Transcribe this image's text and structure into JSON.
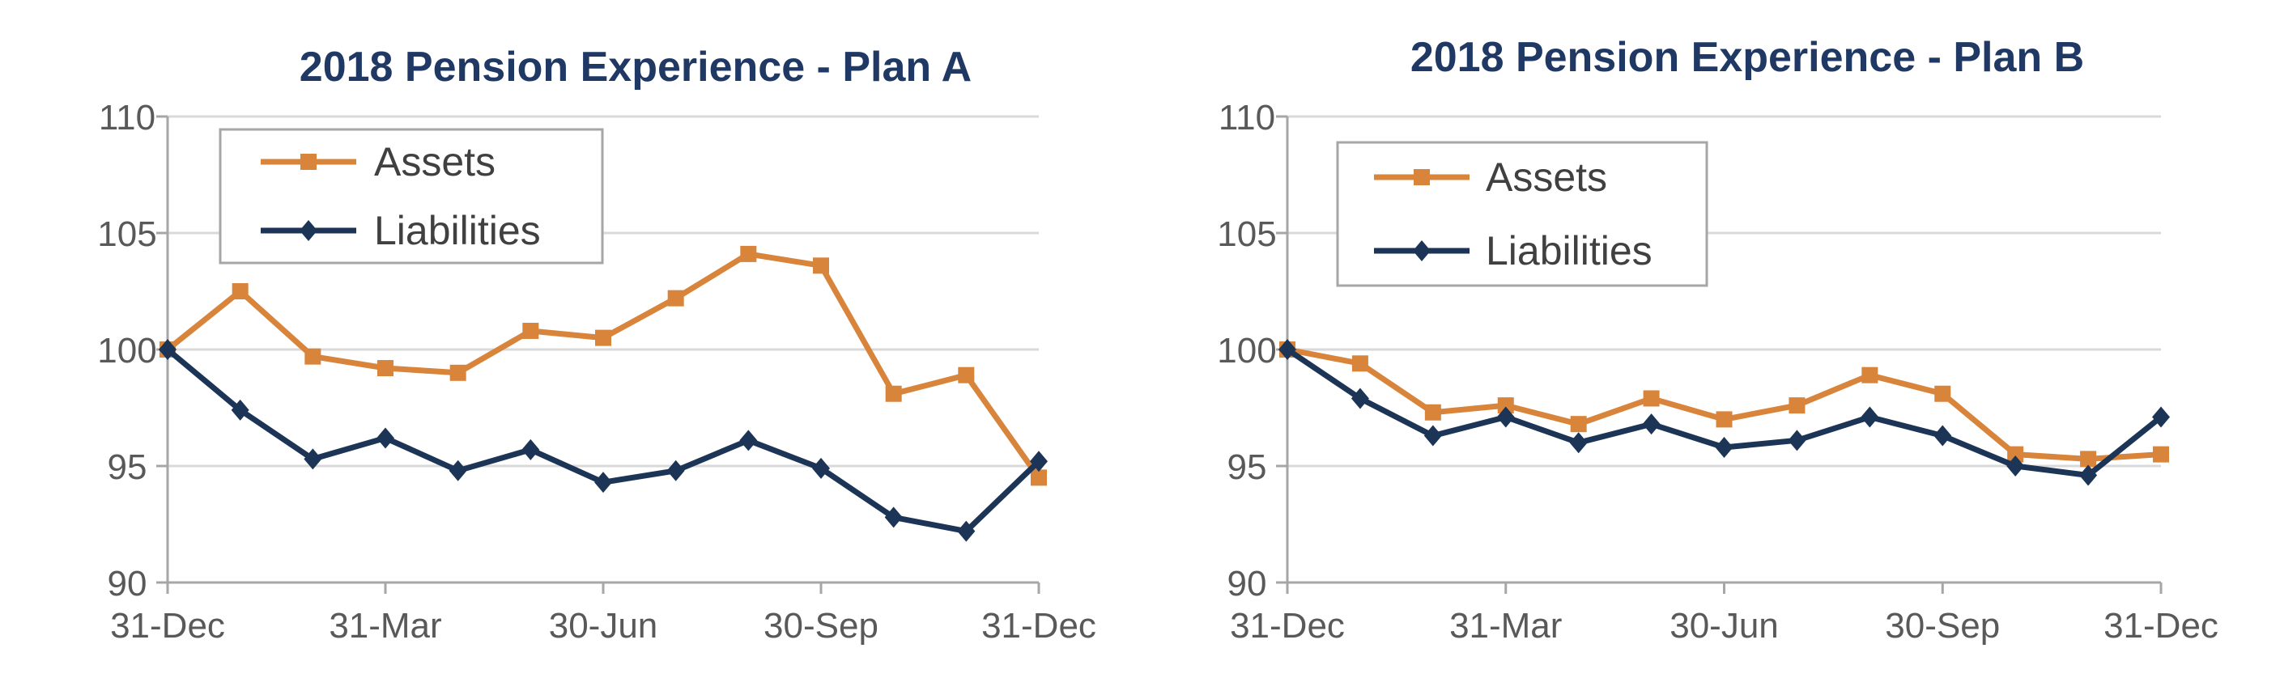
{
  "colors": {
    "assets": "#d9843b",
    "liabilities": "#1c3557",
    "grid": "#d9d9d9",
    "axis": "#a6a6a6",
    "legend_border": "#a6a6a6",
    "title": "#1f3864",
    "tick_text": "#595959"
  },
  "chart_data": [
    {
      "type": "line",
      "title": "2018 Pension Experience - Plan A",
      "xlabel": "",
      "ylabel": "",
      "ylim": [
        90,
        110
      ],
      "y_ticks": [
        "90",
        "95",
        "100",
        "105",
        "110"
      ],
      "x_tick_labels": [
        "31-Dec",
        "31-Mar",
        "30-Jun",
        "30-Sep",
        "31-Dec"
      ],
      "x_tick_indices": [
        0,
        3,
        6,
        9,
        12
      ],
      "legend_placement": "top-left",
      "series": [
        {
          "name": "Assets",
          "marker": "square",
          "values": [
            100.0,
            102.5,
            99.7,
            99.2,
            99.0,
            100.8,
            100.5,
            102.2,
            104.1,
            103.6,
            98.1,
            98.9,
            94.5
          ]
        },
        {
          "name": "Liabilities",
          "marker": "diamond",
          "values": [
            100.0,
            97.4,
            95.3,
            96.2,
            94.8,
            95.7,
            94.3,
            94.8,
            96.1,
            94.9,
            92.8,
            92.2,
            95.2
          ]
        }
      ]
    },
    {
      "type": "line",
      "title": "2018 Pension Experience - Plan B",
      "xlabel": "",
      "ylabel": "",
      "ylim": [
        90,
        110
      ],
      "y_ticks": [
        "90",
        "95",
        "100",
        "105",
        "110"
      ],
      "x_tick_labels": [
        "31-Dec",
        "31-Mar",
        "30-Jun",
        "30-Sep",
        "31-Dec"
      ],
      "x_tick_indices": [
        0,
        3,
        6,
        9,
        12
      ],
      "legend_placement": "top-left",
      "series": [
        {
          "name": "Assets",
          "marker": "square",
          "values": [
            100.0,
            99.4,
            97.3,
            97.6,
            96.8,
            97.9,
            97.0,
            97.6,
            98.9,
            98.1,
            95.5,
            95.3,
            95.5
          ]
        },
        {
          "name": "Liabilities",
          "marker": "diamond",
          "values": [
            100.0,
            97.9,
            96.3,
            97.1,
            96.0,
            96.8,
            95.8,
            96.1,
            97.1,
            96.3,
            95.0,
            94.6,
            97.1
          ]
        }
      ]
    }
  ]
}
